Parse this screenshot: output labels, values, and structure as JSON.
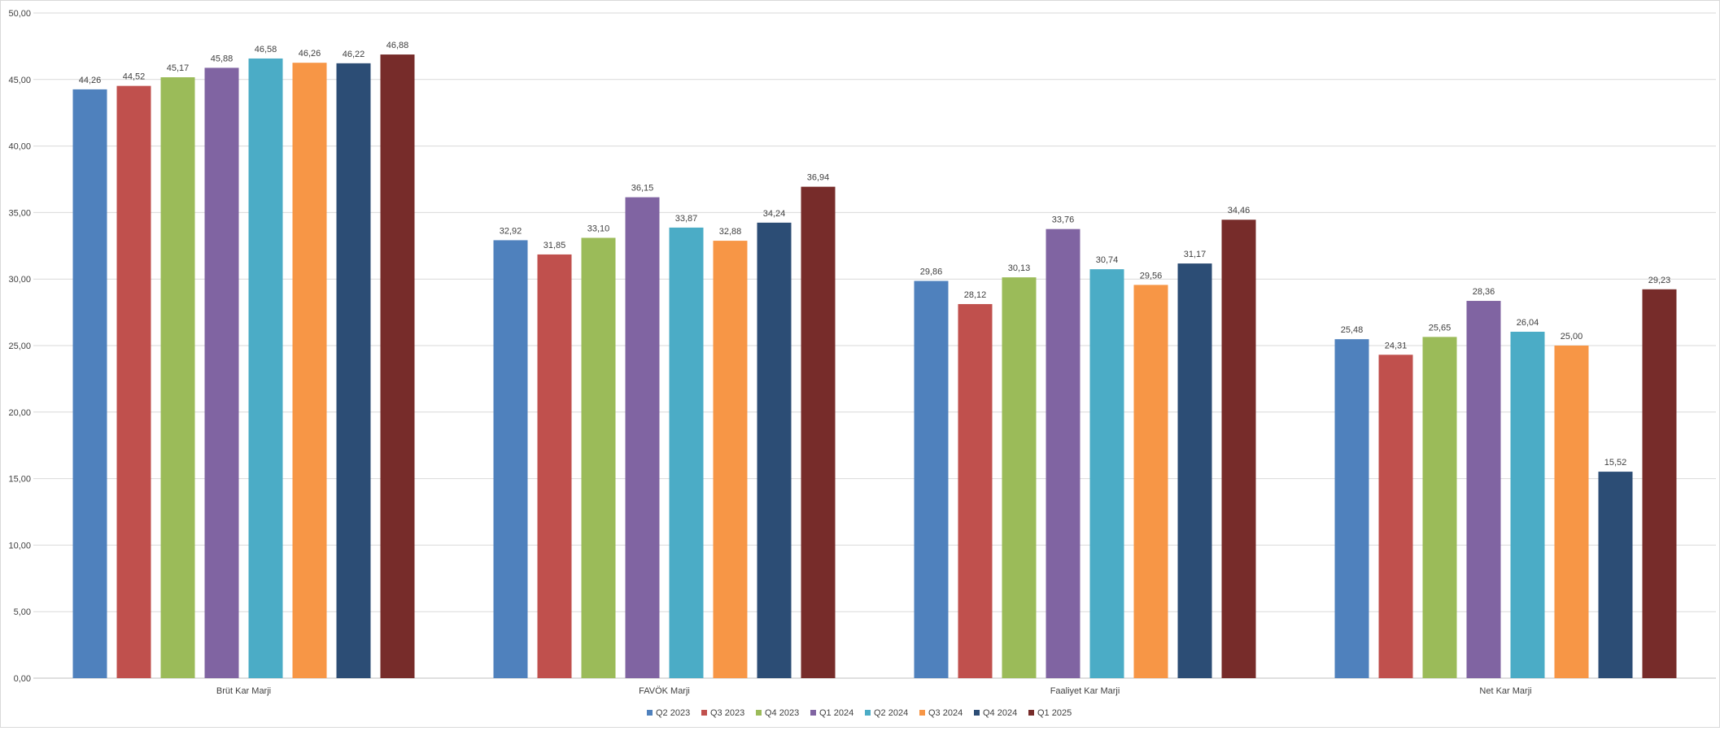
{
  "chart_data": {
    "type": "bar",
    "title": "",
    "xlabel": "",
    "ylabel": "",
    "ylim": [
      0,
      50
    ],
    "y_tick_step": 5,
    "y_tick_labels": [
      "0,00",
      "5,00",
      "10,00",
      "15,00",
      "20,00",
      "25,00",
      "30,00",
      "35,00",
      "40,00",
      "45,00",
      "50,00"
    ],
    "grid": true,
    "legend_position": "bottom",
    "categories": [
      "Brüt Kar Marji",
      "FAVÖK Marji",
      "Faaliyet Kar Marji",
      "Net Kar Marji"
    ],
    "series": [
      {
        "name": "Q2 2023",
        "color": "#4F81BD",
        "values": [
          44.26,
          32.92,
          29.86,
          25.48
        ],
        "labels": [
          "44,26",
          "32,92",
          "29,86",
          "25,48"
        ]
      },
      {
        "name": "Q3 2023",
        "color": "#C0504D",
        "values": [
          44.52,
          31.85,
          28.12,
          24.31
        ],
        "labels": [
          "44,52",
          "31,85",
          "28,12",
          "24,31"
        ]
      },
      {
        "name": "Q4 2023",
        "color": "#9BBB59",
        "values": [
          45.17,
          33.1,
          30.13,
          25.65
        ],
        "labels": [
          "45,17",
          "33,10",
          "30,13",
          "25,65"
        ]
      },
      {
        "name": "Q1 2024",
        "color": "#8064A2",
        "values": [
          45.88,
          36.15,
          33.76,
          28.36
        ],
        "labels": [
          "45,88",
          "36,15",
          "33,76",
          "28,36"
        ]
      },
      {
        "name": "Q2 2024",
        "color": "#4BACC6",
        "values": [
          46.58,
          33.87,
          30.74,
          26.04
        ],
        "labels": [
          "46,58",
          "33,87",
          "30,74",
          "26,04"
        ]
      },
      {
        "name": "Q3 2024",
        "color": "#F79646",
        "values": [
          46.26,
          32.88,
          29.56,
          25.0
        ],
        "labels": [
          "46,26",
          "32,88",
          "29,56",
          "25,00"
        ]
      },
      {
        "name": "Q4 2024",
        "color": "#2C4D75",
        "values": [
          46.22,
          34.24,
          31.17,
          15.52
        ],
        "labels": [
          "46,22",
          "34,24",
          "31,17",
          "15,52"
        ]
      },
      {
        "name": "Q1 2025",
        "color": "#772C2A",
        "values": [
          46.88,
          36.94,
          34.46,
          29.23
        ],
        "labels": [
          "46,88",
          "36,94",
          "34,46",
          "29,23"
        ]
      }
    ]
  }
}
